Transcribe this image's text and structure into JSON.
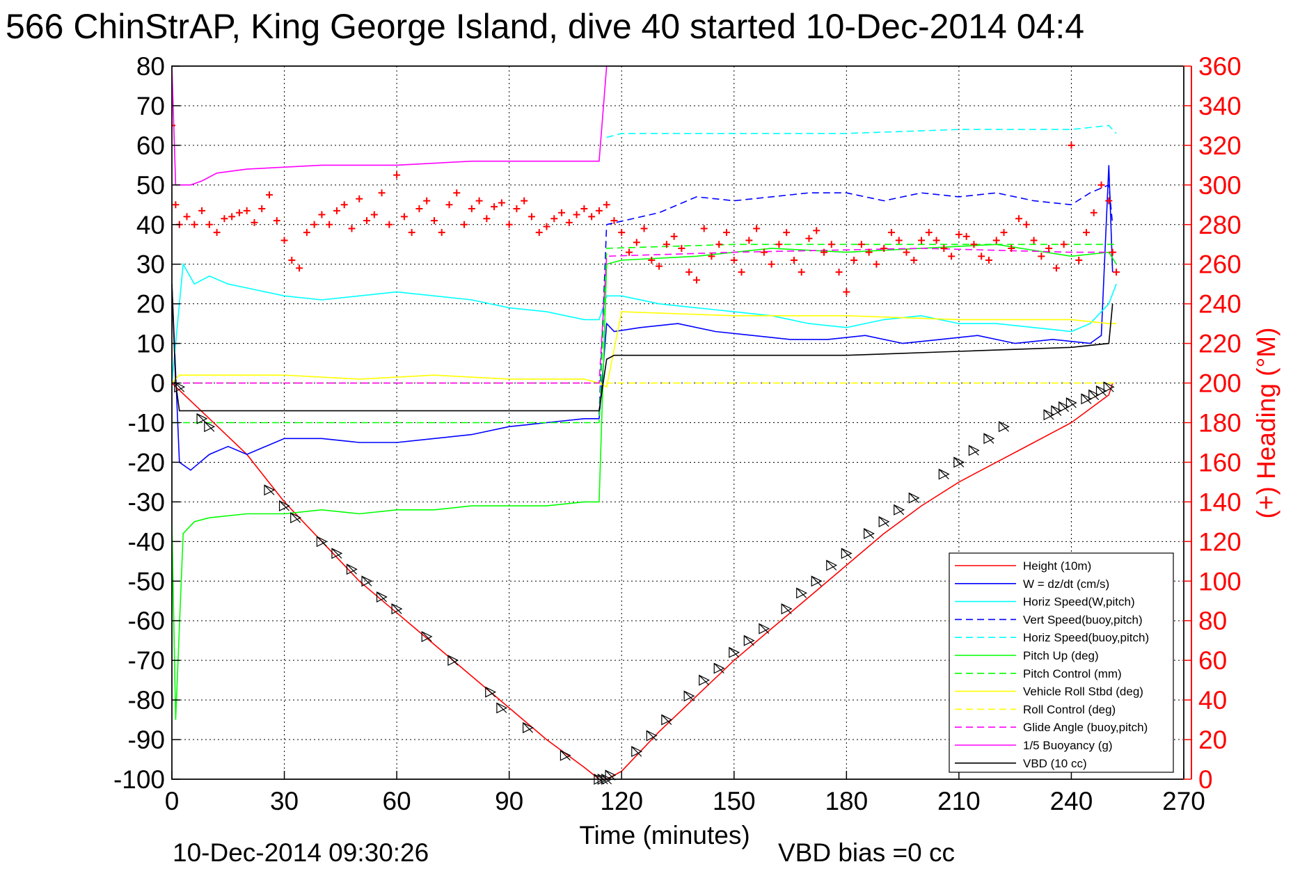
{
  "chart_data": {
    "type": "line",
    "title": "566 ChinStrAP, King George Island, dive 40 started 10-Dec-2014 04:4",
    "xlabel": "Time (minutes)",
    "ylabel": "",
    "ylabel_right": "(+) Heading (°M)",
    "xlim": [
      0,
      270
    ],
    "ylim": [
      -100,
      80
    ],
    "ylim_right": [
      0,
      360
    ],
    "x_ticks": [
      "0",
      "30",
      "60",
      "90",
      "120",
      "150",
      "180",
      "210",
      "240",
      "270"
    ],
    "y_ticks": [
      "80",
      "70",
      "60",
      "50",
      "40",
      "30",
      "20",
      "10",
      "0",
      "-10",
      "-20",
      "-30",
      "-40",
      "-50",
      "-60",
      "-70",
      "-80",
      "-90",
      "-100"
    ],
    "y_ticks_right": [
      "360",
      "340",
      "320",
      "300",
      "280",
      "260",
      "240",
      "220",
      "200",
      "180",
      "160",
      "140",
      "120",
      "100",
      "80",
      "60",
      "40",
      "20",
      "0"
    ],
    "grid": true,
    "legend_position": "bottom-right",
    "footer_date": "10-Dec-2014 09:30:26",
    "footer_vbd": "VBD bias =0 cc",
    "colors": {
      "left_axis": "#000000",
      "right_axis": "#ff0000",
      "grid": "#000000"
    },
    "series": [
      {
        "name": "Height (10m)",
        "color": "#ff0000",
        "dash": "solid",
        "x": [
          0,
          10,
          20,
          30,
          40,
          50,
          60,
          70,
          80,
          90,
          100,
          110,
          114,
          116,
          120,
          130,
          140,
          150,
          160,
          170,
          180,
          190,
          200,
          210,
          220,
          230,
          240,
          250,
          251
        ],
        "y": [
          0,
          -9,
          -18,
          -30,
          -40,
          -50,
          -58,
          -66,
          -74,
          -82,
          -90,
          -97,
          -100,
          -100,
          -98,
          -88,
          -79,
          -70,
          -62,
          -54,
          -46,
          -38,
          -31,
          -25,
          -20,
          -15,
          -10,
          -3,
          0
        ]
      },
      {
        "name": "W = dz/dt (cm/s)",
        "color": "#0000ff",
        "dash": "solid",
        "x": [
          0,
          2,
          5,
          10,
          15,
          20,
          30,
          40,
          50,
          60,
          70,
          80,
          90,
          100,
          110,
          114,
          116,
          118,
          125,
          135,
          145,
          155,
          165,
          175,
          185,
          195,
          205,
          215,
          225,
          235,
          245,
          248,
          250,
          251
        ],
        "y": [
          25,
          -20,
          -22,
          -18,
          -16,
          -18,
          -14,
          -14,
          -15,
          -15,
          -14,
          -13,
          -11,
          -10,
          -9,
          -9,
          15,
          13,
          14,
          15,
          13,
          12,
          11,
          11,
          12,
          10,
          11,
          12,
          10,
          11,
          10,
          12,
          55,
          28
        ]
      },
      {
        "name": "Horiz Speed(W,pitch)",
        "color": "#00ffff",
        "dash": "solid",
        "x": [
          0,
          3,
          6,
          10,
          15,
          20,
          30,
          40,
          50,
          60,
          70,
          80,
          90,
          100,
          110,
          114,
          116,
          120,
          130,
          140,
          150,
          160,
          170,
          180,
          190,
          200,
          210,
          220,
          230,
          240,
          245,
          250,
          252
        ],
        "y": [
          0,
          30,
          25,
          27,
          25,
          24,
          22,
          21,
          22,
          23,
          22,
          21,
          19,
          18,
          16,
          16,
          22,
          22,
          20,
          19,
          18,
          17,
          15,
          14,
          16,
          17,
          15,
          15,
          14,
          13,
          15,
          20,
          25
        ]
      },
      {
        "name": "Vert Speed(buoy,pitch)",
        "color": "#0000ff",
        "dash": "dashed",
        "x": [
          114,
          116,
          130,
          140,
          150,
          160,
          170,
          180,
          190,
          200,
          210,
          220,
          230,
          240,
          245,
          250,
          251
        ],
        "y": [
          -8,
          40,
          43,
          47,
          46,
          47,
          48,
          48,
          46,
          48,
          47,
          48,
          46,
          45,
          48,
          50,
          40
        ]
      },
      {
        "name": "Horiz Speed(buoy,pitch)",
        "color": "#00ffff",
        "dash": "dashed",
        "x": [
          116,
          120,
          150,
          180,
          210,
          240,
          250,
          252
        ],
        "y": [
          62,
          63,
          63,
          63,
          64,
          64,
          65,
          63
        ]
      },
      {
        "name": "Pitch Up (deg)",
        "color": "#00ff00",
        "dash": "solid",
        "x": [
          0,
          1,
          3,
          6,
          10,
          20,
          30,
          40,
          50,
          60,
          70,
          80,
          90,
          100,
          110,
          114,
          116,
          120,
          140,
          160,
          180,
          200,
          220,
          240,
          250,
          252
        ],
        "y": [
          -35,
          -85,
          -38,
          -35,
          -34,
          -33,
          -33,
          -32,
          -33,
          -32,
          -32,
          -31,
          -31,
          -31,
          -30,
          -30,
          30,
          31,
          32,
          34,
          33,
          34,
          35,
          32,
          33,
          30
        ]
      },
      {
        "name": "Pitch Control (mm)",
        "color": "#00ff00",
        "dash": "dashed",
        "x": [
          0,
          2,
          10,
          50,
          100,
          114,
          116,
          150,
          200,
          250,
          252
        ],
        "y": [
          -10,
          -10,
          -10,
          -10,
          -10,
          -10,
          34,
          35,
          35,
          35,
          35
        ]
      },
      {
        "name": "Vehicle Roll Stbd (deg)",
        "color": "#ffff00",
        "dash": "solid",
        "x": [
          0,
          2,
          10,
          30,
          50,
          70,
          90,
          110,
          114,
          116,
          120,
          150,
          180,
          210,
          240,
          250,
          252
        ],
        "y": [
          0,
          2,
          2,
          2,
          1,
          2,
          1,
          1,
          0,
          -1,
          18,
          17,
          17,
          16,
          16,
          15,
          15
        ]
      },
      {
        "name": "Roll Control (deg)",
        "color": "#ffff00",
        "dash": "dashed",
        "x": [
          0,
          60,
          114,
          116,
          200,
          252
        ],
        "y": [
          0,
          0,
          0,
          0,
          0,
          0
        ]
      },
      {
        "name": "Glide Angle (buoy,pitch)",
        "color": "#ff00ff",
        "dash": "dashed",
        "x": [
          0,
          2,
          50,
          100,
          114,
          116,
          150,
          200,
          240,
          252
        ],
        "y": [
          0,
          0,
          0,
          0,
          0,
          32,
          33,
          34,
          33,
          33
        ]
      },
      {
        "name": "1/5 Buoyancy (g)",
        "color": "#ff00ff",
        "dash": "solid",
        "x": [
          0,
          1,
          5,
          8,
          12,
          20,
          40,
          60,
          80,
          100,
          113,
          114,
          116
        ],
        "y": [
          80,
          50,
          50,
          51,
          53,
          54,
          55,
          55,
          56,
          56,
          56,
          56,
          80
        ]
      },
      {
        "name": "VBD (10 cc)",
        "color": "#000000",
        "dash": "solid",
        "x": [
          0,
          1,
          2,
          30,
          60,
          90,
          114,
          116,
          118,
          150,
          180,
          210,
          240,
          250,
          251
        ],
        "y": [
          25,
          0,
          -7,
          -7,
          -7,
          -7,
          -7,
          6,
          7,
          7,
          7,
          8,
          9,
          10,
          20
        ]
      }
    ],
    "heading_series": {
      "name": "(+) Heading",
      "color": "#ff0000",
      "axis": "right",
      "x": [
        0,
        1,
        2,
        4,
        6,
        8,
        10,
        12,
        14,
        16,
        18,
        20,
        22,
        24,
        26,
        28,
        30,
        32,
        34,
        36,
        38,
        40,
        42,
        44,
        46,
        48,
        50,
        52,
        54,
        56,
        58,
        60,
        62,
        64,
        66,
        68,
        70,
        72,
        74,
        76,
        78,
        80,
        82,
        84,
        86,
        88,
        90,
        92,
        94,
        96,
        98,
        100,
        102,
        104,
        106,
        108,
        110,
        112,
        114,
        116,
        118,
        120,
        122,
        124,
        126,
        128,
        130,
        132,
        134,
        136,
        138,
        140,
        142,
        144,
        146,
        148,
        150,
        152,
        154,
        156,
        158,
        160,
        162,
        164,
        166,
        168,
        170,
        172,
        174,
        176,
        178,
        180,
        182,
        184,
        186,
        188,
        190,
        192,
        194,
        196,
        198,
        200,
        202,
        204,
        206,
        208,
        210,
        212,
        214,
        216,
        218,
        220,
        222,
        224,
        226,
        228,
        230,
        232,
        234,
        236,
        238,
        240,
        242,
        244,
        246,
        248,
        250,
        251,
        252
      ],
      "y": [
        330,
        290,
        280,
        284,
        280,
        287,
        280,
        276,
        283,
        284,
        286,
        287,
        281,
        288,
        295,
        282,
        272,
        262,
        258,
        276,
        280,
        285,
        280,
        287,
        290,
        278,
        293,
        282,
        285,
        296,
        280,
        305,
        284,
        276,
        288,
        292,
        282,
        276,
        290,
        296,
        280,
        288,
        292,
        283,
        289,
        291,
        280,
        288,
        292,
        284,
        276,
        279,
        283,
        286,
        281,
        285,
        288,
        284,
        287,
        290,
        282,
        276,
        266,
        271,
        278,
        262,
        259,
        270,
        274,
        268,
        256,
        252,
        278,
        264,
        270,
        276,
        262,
        256,
        272,
        278,
        266,
        260,
        270,
        276,
        262,
        256,
        273,
        277,
        266,
        270,
        256,
        246,
        262,
        270,
        266,
        260,
        268,
        276,
        272,
        266,
        262,
        272,
        276,
        272,
        268,
        264,
        275,
        274,
        270,
        264,
        262,
        272,
        276,
        268,
        283,
        280,
        272,
        264,
        268,
        258,
        270,
        320,
        262,
        276,
        286,
        300,
        292,
        266,
        256
      ]
    },
    "markers": {
      "name": "Height markers",
      "color": "#000000",
      "x": [
        2,
        8,
        10,
        26,
        30,
        33,
        40,
        44,
        48,
        52,
        56,
        60,
        68,
        75,
        85,
        88,
        95,
        105,
        114,
        115,
        116,
        117,
        124,
        128,
        132,
        138,
        142,
        146,
        150,
        154,
        158,
        164,
        168,
        172,
        176,
        180,
        186,
        190,
        194,
        198,
        206,
        210,
        214,
        218,
        222,
        234,
        236,
        238,
        240,
        244,
        246,
        248,
        250
      ],
      "y": [
        -1,
        -9,
        -11,
        -27,
        -31,
        -34,
        -40,
        -43,
        -47,
        -50,
        -54,
        -57,
        -64,
        -70,
        -78,
        -82,
        -87,
        -94,
        -100,
        -100,
        -100,
        -99,
        -93,
        -89,
        -85,
        -79,
        -75,
        -72,
        -68,
        -65,
        -62,
        -57,
        -53,
        -50,
        -46,
        -43,
        -38,
        -35,
        -32,
        -29,
        -23,
        -20,
        -17,
        -14,
        -11,
        -8,
        -7,
        -6,
        -5,
        -4,
        -3,
        -2,
        -1
      ]
    }
  }
}
